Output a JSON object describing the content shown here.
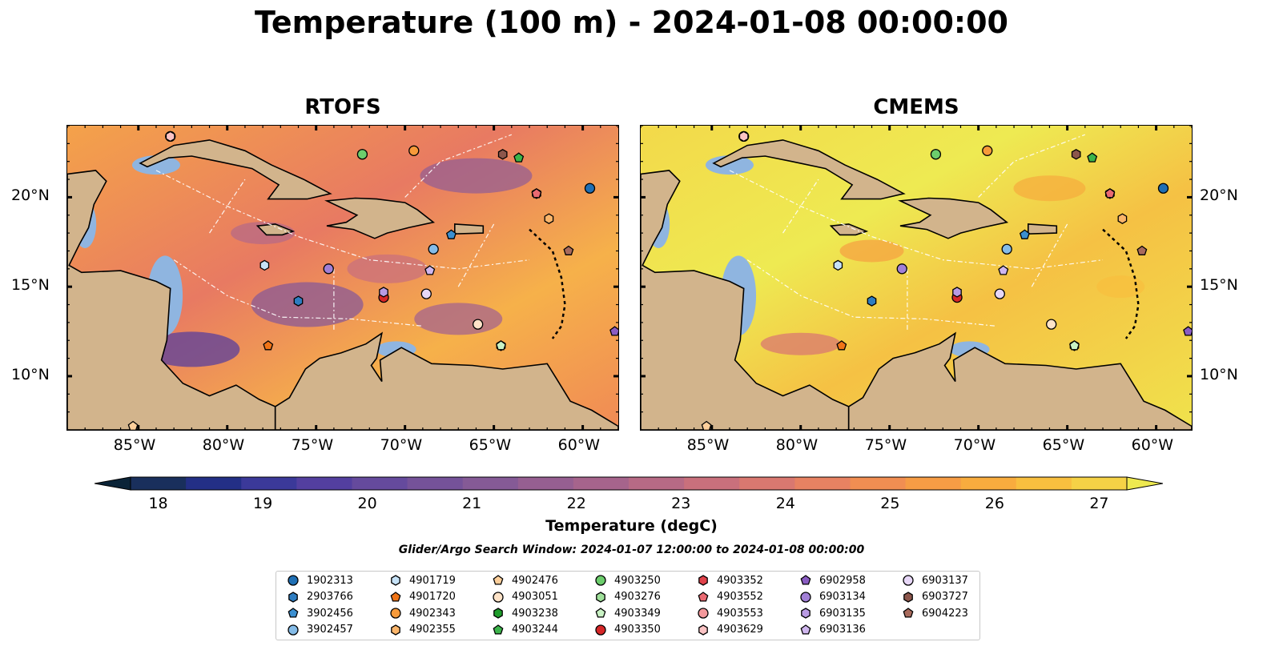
{
  "title": "Temperature (100 m) - 2024-01-08 00:00:00",
  "panels": [
    "RTOFS",
    "CMEMS"
  ],
  "colorbar": {
    "label": "Temperature (degC)",
    "ticks": [
      "18",
      "19",
      "20",
      "21",
      "22",
      "23",
      "24",
      "25",
      "26",
      "27"
    ],
    "min": 18,
    "max": 27,
    "step": 0.5,
    "extend": "both",
    "colors": [
      "#0b2438",
      "#192f5c",
      "#232f86",
      "#3b3999",
      "#533f9f",
      "#654a9d",
      "#755299",
      "#855a96",
      "#965f91",
      "#a6648c",
      "#b76a85",
      "#c9707c",
      "#d97870",
      "#e78262",
      "#f18e52",
      "#f69c45",
      "#f8ac3e",
      "#f8bf3f",
      "#f5d246",
      "#eee950"
    ]
  },
  "search_window": "Glider/Argo Search Window: 2024-01-07 12:00:00 to 2024-01-08 00:00:00",
  "land_color": "#d2b48c",
  "shelf_color": "#8fb5e0",
  "chart_data": [
    {
      "type": "heatmap",
      "title": "RTOFS",
      "variable": "Temperature (degC)",
      "depth": "100 m",
      "xlim": [
        -89,
        -58
      ],
      "ylim": [
        7,
        24
      ],
      "xticks": [
        "85°W",
        "80°W",
        "75°W",
        "70°W",
        "65°W",
        "60°W"
      ],
      "yticks": [
        "20°N",
        "15°N",
        "10°N"
      ],
      "colorbar_range": [
        18,
        27
      ]
    },
    {
      "type": "heatmap",
      "title": "CMEMS",
      "variable": "Temperature (degC)",
      "depth": "100 m",
      "xlim": [
        -89,
        -58
      ],
      "ylim": [
        7,
        24
      ],
      "xticks": [
        "85°W",
        "80°W",
        "75°W",
        "70°W",
        "65°W",
        "60°W"
      ],
      "yticks": [
        "20°N",
        "15°N",
        "10°N"
      ],
      "colorbar_range": [
        18,
        27
      ]
    }
  ],
  "floats": [
    {
      "id": "1902313",
      "marker": "circle",
      "color": "#1f6fb4",
      "lon": -59.6,
      "lat": 20.5
    },
    {
      "id": "2903766",
      "marker": "hexagon",
      "color": "#2e7dc1",
      "lon": -76.0,
      "lat": 14.2
    },
    {
      "id": "3902456",
      "marker": "pentagon",
      "color": "#3b8fd0",
      "lon": -67.4,
      "lat": 17.9
    },
    {
      "id": "3902457",
      "marker": "circle",
      "color": "#85bce8",
      "lon": -68.4,
      "lat": 17.1
    },
    {
      "id": "4901719",
      "marker": "hexagon",
      "color": "#c6e2f7",
      "lon": -77.9,
      "lat": 16.2
    },
    {
      "id": "4901720",
      "marker": "pentagon",
      "color": "#f07417",
      "lon": -77.7,
      "lat": 11.7
    },
    {
      "id": "4902343",
      "marker": "circle",
      "color": "#f79a3a",
      "lon": -69.5,
      "lat": 22.6
    },
    {
      "id": "4902355",
      "marker": "hexagon",
      "color": "#fbb56a",
      "lon": -61.9,
      "lat": 18.8
    },
    {
      "id": "4902476",
      "marker": "pentagon",
      "color": "#fdcf9b",
      "lon": -85.3,
      "lat": 7.2
    },
    {
      "id": "4903051",
      "marker": "circle",
      "color": "#fee3c8",
      "lon": -65.9,
      "lat": 12.9
    },
    {
      "id": "4903238",
      "marker": "hexagon",
      "color": "#1f9d2b",
      "lon": -72.4,
      "lat": 22.4
    },
    {
      "id": "4903244",
      "marker": "pentagon",
      "color": "#3cb44b",
      "lon": -63.6,
      "lat": 22.2
    },
    {
      "id": "4903250",
      "marker": "circle",
      "color": "#6ccd6c",
      "lon": -72.4,
      "lat": 22.4
    },
    {
      "id": "4903276",
      "marker": "hexagon",
      "color": "#9fe09a",
      "lon": -64.6,
      "lat": 11.7
    },
    {
      "id": "4903349",
      "marker": "pentagon",
      "color": "#c9f2c4",
      "lon": -64.6,
      "lat": 11.7
    },
    {
      "id": "4903350",
      "marker": "circle",
      "color": "#d62728",
      "lon": -71.2,
      "lat": 14.4
    },
    {
      "id": "4903352",
      "marker": "hexagon",
      "color": "#e0424a",
      "lon": -62.6,
      "lat": 20.2
    },
    {
      "id": "4903552",
      "marker": "pentagon",
      "color": "#ea6a72",
      "lon": -62.6,
      "lat": 20.2
    },
    {
      "id": "4903553",
      "marker": "circle",
      "color": "#f4999c",
      "lon": -83.2,
      "lat": 23.4
    },
    {
      "id": "4903629",
      "marker": "hexagon",
      "color": "#fbc3c4",
      "lon": -83.2,
      "lat": 23.4
    },
    {
      "id": "6902958",
      "marker": "pentagon",
      "color": "#8a5cc2",
      "lon": -58.2,
      "lat": 12.5
    },
    {
      "id": "6903134",
      "marker": "circle",
      "color": "#a17fd6",
      "lon": -74.3,
      "lat": 16.0
    },
    {
      "id": "6903135",
      "marker": "hexagon",
      "color": "#b99be3",
      "lon": -71.2,
      "lat": 14.7
    },
    {
      "id": "6903136",
      "marker": "pentagon",
      "color": "#cfb6ee",
      "lon": -68.6,
      "lat": 15.9
    },
    {
      "id": "6903137",
      "marker": "circle",
      "color": "#e7d7f7",
      "lon": -68.8,
      "lat": 14.6
    },
    {
      "id": "6903727",
      "marker": "hexagon",
      "color": "#8c564b",
      "lon": -64.5,
      "lat": 22.4
    },
    {
      "id": "6904223",
      "marker": "pentagon",
      "color": "#a86a5c",
      "lon": -60.8,
      "lat": 17.0
    }
  ]
}
